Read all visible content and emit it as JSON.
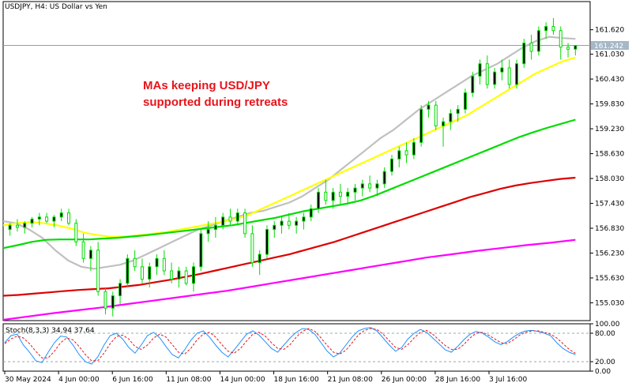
{
  "chart_data": {
    "type": "line",
    "header": {
      "symbol": "USDJPY",
      "timeframe": "H4",
      "description": "US Dollar vs Yen"
    },
    "annotation": "MAs keeping USD/JPY supported during retreats",
    "annotation_lines": [
      "MAs keeping USD/JPY",
      "supported during retreats"
    ],
    "y_ticks": [
      "161.620",
      "161.030",
      "160.430",
      "159.830",
      "159.230",
      "158.630",
      "158.030",
      "157.430",
      "156.830",
      "156.230",
      "155.630",
      "155.030"
    ],
    "y_tick_values": [
      161.62,
      161.03,
      160.43,
      159.83,
      159.23,
      158.63,
      158.03,
      157.43,
      156.83,
      156.23,
      155.63,
      155.03
    ],
    "ylim": [
      154.6,
      162.3
    ],
    "current_price": "161.242",
    "current_price_value": 161.242,
    "x_ticks": [
      "30 May 2024",
      "4 Jun 00:00",
      "6 Jun 16:00",
      "11 Jun 08:00",
      "14 Jun 00:00",
      "18 Jun 16:00",
      "21 Jun 08:00",
      "26 Jun 00:00",
      "28 Jun 16:00",
      "3 Jul 16:00"
    ],
    "candles": [
      [
        156.8,
        156.95,
        156.65,
        156.9
      ],
      [
        156.9,
        157.05,
        156.75,
        156.85
      ],
      [
        156.85,
        157.0,
        156.7,
        156.95
      ],
      [
        156.95,
        157.1,
        156.85,
        157.05
      ],
      [
        157.05,
        157.2,
        156.9,
        157.1
      ],
      [
        157.1,
        157.2,
        156.95,
        157.0
      ],
      [
        157.0,
        157.15,
        156.85,
        157.1
      ],
      [
        157.1,
        157.3,
        157.0,
        157.2
      ],
      [
        157.2,
        157.3,
        156.9,
        156.95
      ],
      [
        156.95,
        157.05,
        156.4,
        156.5
      ],
      [
        156.5,
        156.7,
        156.0,
        156.1
      ],
      [
        156.1,
        156.4,
        155.8,
        156.3
      ],
      [
        156.3,
        156.5,
        155.2,
        155.3
      ],
      [
        155.3,
        155.4,
        154.75,
        154.9
      ],
      [
        154.9,
        155.3,
        154.7,
        155.2
      ],
      [
        155.2,
        155.6,
        155.0,
        155.5
      ],
      [
        155.5,
        156.2,
        155.4,
        156.1
      ],
      [
        156.1,
        156.3,
        155.8,
        155.9
      ],
      [
        155.9,
        156.1,
        155.5,
        155.6
      ],
      [
        155.6,
        156.0,
        155.4,
        155.9
      ],
      [
        155.9,
        156.2,
        155.7,
        156.1
      ],
      [
        156.1,
        156.3,
        155.7,
        155.8
      ],
      [
        155.8,
        156.0,
        155.5,
        155.6
      ],
      [
        155.6,
        155.9,
        155.4,
        155.8
      ],
      [
        155.8,
        155.9,
        155.45,
        155.5
      ],
      [
        155.5,
        156.0,
        155.3,
        155.9
      ],
      [
        155.9,
        156.8,
        155.8,
        156.7
      ],
      [
        156.7,
        157.0,
        156.5,
        156.8
      ],
      [
        156.8,
        157.1,
        156.6,
        156.9
      ],
      [
        156.9,
        157.2,
        156.8,
        157.1
      ],
      [
        157.1,
        157.3,
        156.9,
        157.0
      ],
      [
        157.0,
        157.3,
        156.9,
        157.2
      ],
      [
        157.2,
        157.3,
        156.6,
        156.7
      ],
      [
        156.7,
        156.9,
        155.9,
        156.0
      ],
      [
        156.0,
        156.3,
        155.7,
        156.2
      ],
      [
        156.2,
        156.9,
        156.1,
        156.8
      ],
      [
        156.8,
        157.0,
        156.6,
        156.9
      ],
      [
        156.9,
        157.1,
        156.7,
        157.0
      ],
      [
        157.0,
        157.2,
        156.8,
        156.9
      ],
      [
        156.9,
        157.1,
        156.7,
        157.0
      ],
      [
        157.0,
        157.2,
        156.8,
        157.1
      ],
      [
        157.1,
        157.4,
        157.0,
        157.3
      ],
      [
        157.3,
        157.8,
        157.2,
        157.7
      ],
      [
        157.7,
        158.0,
        157.4,
        157.5
      ],
      [
        157.5,
        157.8,
        157.3,
        157.7
      ],
      [
        157.7,
        157.9,
        157.4,
        157.6
      ],
      [
        157.6,
        157.8,
        157.4,
        157.7
      ],
      [
        157.7,
        157.9,
        157.5,
        157.8
      ],
      [
        157.8,
        158.0,
        157.6,
        157.9
      ],
      [
        157.9,
        158.1,
        157.7,
        157.8
      ],
      [
        157.8,
        158.0,
        157.6,
        157.9
      ],
      [
        157.9,
        158.3,
        157.8,
        158.2
      ],
      [
        158.2,
        158.6,
        158.1,
        158.5
      ],
      [
        158.5,
        158.8,
        158.3,
        158.7
      ],
      [
        158.7,
        158.9,
        158.4,
        158.6
      ],
      [
        158.6,
        159.0,
        158.5,
        158.9
      ],
      [
        158.9,
        159.8,
        158.8,
        159.7
      ],
      [
        159.7,
        159.9,
        159.5,
        159.8
      ],
      [
        159.8,
        159.9,
        159.2,
        159.3
      ],
      [
        159.3,
        159.5,
        158.8,
        159.4
      ],
      [
        159.4,
        159.7,
        159.2,
        159.6
      ],
      [
        159.6,
        159.8,
        159.4,
        159.7
      ],
      [
        159.7,
        160.2,
        159.6,
        160.1
      ],
      [
        160.1,
        160.6,
        160.0,
        160.5
      ],
      [
        160.5,
        160.9,
        160.3,
        160.8
      ],
      [
        160.8,
        161.0,
        160.2,
        160.3
      ],
      [
        160.3,
        160.7,
        160.2,
        160.6
      ],
      [
        160.6,
        160.9,
        160.4,
        160.7
      ],
      [
        160.7,
        160.9,
        160.2,
        160.3
      ],
      [
        160.3,
        160.9,
        160.2,
        160.8
      ],
      [
        160.8,
        161.4,
        160.7,
        161.3
      ],
      [
        161.3,
        161.5,
        160.9,
        161.1
      ],
      [
        161.1,
        161.7,
        161.0,
        161.6
      ],
      [
        161.6,
        161.8,
        161.4,
        161.7
      ],
      [
        161.7,
        161.9,
        161.5,
        161.6
      ],
      [
        161.6,
        161.7,
        160.9,
        161.2
      ],
      [
        161.2,
        161.3,
        160.95,
        161.15
      ],
      [
        161.15,
        161.25,
        161.0,
        161.24
      ]
    ],
    "ma_lines": [
      {
        "color": "#c0c0c0",
        "values": [
          157.0,
          156.95,
          156.8,
          156.6,
          156.3,
          156.05,
          155.9,
          155.85,
          155.9,
          155.95,
          156.05,
          156.2,
          156.35,
          156.5,
          156.65,
          156.8,
          156.9,
          157.0,
          157.1,
          157.2,
          157.25,
          157.35,
          157.45,
          157.6,
          157.8,
          158.0,
          158.25,
          158.5,
          158.75,
          159.0,
          159.2,
          159.45,
          159.7,
          159.9,
          160.1,
          160.3,
          160.5,
          160.65,
          160.8,
          161.0,
          161.2,
          161.35,
          161.45,
          161.42,
          161.4
        ]
      },
      {
        "color": "#ffff00",
        "values": [
          156.9,
          156.95,
          156.98,
          156.95,
          156.9,
          156.82,
          156.72,
          156.66,
          156.62,
          156.63,
          156.66,
          156.7,
          156.74,
          156.8,
          156.86,
          156.92,
          156.98,
          157.05,
          157.15,
          157.3,
          157.45,
          157.6,
          157.75,
          157.9,
          158.05,
          158.2,
          158.35,
          158.5,
          158.65,
          158.8,
          158.95,
          159.1,
          159.25,
          159.4,
          159.55,
          159.75,
          159.95,
          160.15,
          160.35,
          160.55,
          160.7,
          160.85,
          160.95
        ]
      },
      {
        "color": "#00dc00",
        "values": [
          156.35,
          156.42,
          156.5,
          156.55,
          156.56,
          156.56,
          156.56,
          156.58,
          156.6,
          156.63,
          156.66,
          156.7,
          156.74,
          156.78,
          156.82,
          156.86,
          156.9,
          156.96,
          157.02,
          157.08,
          157.16,
          157.24,
          157.3,
          157.36,
          157.42,
          157.5,
          157.62,
          157.76,
          157.9,
          158.04,
          158.18,
          158.32,
          158.46,
          158.6,
          158.74,
          158.88,
          159.02,
          159.14,
          159.25,
          159.35,
          159.45
        ]
      },
      {
        "color": "#dd0000",
        "values": [
          155.2,
          155.22,
          155.25,
          155.28,
          155.31,
          155.34,
          155.36,
          155.38,
          155.42,
          155.46,
          155.52,
          155.58,
          155.65,
          155.72,
          155.8,
          155.88,
          155.96,
          156.04,
          156.12,
          156.2,
          156.3,
          156.4,
          156.5,
          156.62,
          156.74,
          156.86,
          156.98,
          157.1,
          157.22,
          157.34,
          157.46,
          157.58,
          157.68,
          157.78,
          157.86,
          157.92,
          157.97,
          158.02,
          158.05
        ]
      },
      {
        "color": "#ff00ff",
        "values": [
          154.62,
          154.7,
          154.78,
          154.85,
          154.92,
          155.0,
          155.08,
          155.16,
          155.24,
          155.32,
          155.42,
          155.52,
          155.62,
          155.72,
          155.82,
          155.92,
          156.02,
          156.12,
          156.2,
          156.28,
          156.35,
          156.42,
          156.48,
          156.55
        ]
      }
    ],
    "stochastic": {
      "label": "Stoch(8,3,3) 34.94 37.64",
      "k_value": 34.94,
      "d_value": 37.64,
      "levels": [
        "100.00",
        "80.00",
        "20.00",
        "0.00"
      ],
      "level_values": [
        100,
        80,
        20,
        0
      ],
      "ylim": [
        0,
        100
      ],
      "k": [
        60,
        75,
        78,
        55,
        40,
        22,
        18,
        40,
        60,
        74,
        72,
        55,
        35,
        20,
        15,
        30,
        55,
        75,
        80,
        68,
        50,
        38,
        55,
        75,
        82,
        70,
        52,
        35,
        28,
        45,
        65,
        80,
        85,
        72,
        55,
        40,
        30,
        45,
        62,
        78,
        85,
        76,
        62,
        48,
        40,
        55,
        70,
        82,
        90,
        88,
        78,
        60,
        42,
        30,
        38,
        55,
        72,
        85,
        90,
        92,
        85,
        70,
        55,
        42,
        50,
        68,
        80,
        88,
        82,
        70,
        58,
        45,
        40,
        52,
        66,
        78,
        84,
        80,
        72,
        62,
        56,
        62,
        72,
        80,
        85,
        86,
        84,
        80,
        75,
        60,
        48,
        40,
        34.94
      ],
      "d": [
        58,
        68,
        74,
        70,
        58,
        42,
        28,
        28,
        42,
        60,
        70,
        66,
        52,
        35,
        22,
        22,
        38,
        58,
        73,
        76,
        68,
        52,
        46,
        55,
        70,
        78,
        72,
        56,
        40,
        36,
        48,
        66,
        78,
        82,
        72,
        56,
        42,
        38,
        48,
        64,
        78,
        82,
        74,
        60,
        48,
        46,
        56,
        72,
        84,
        90,
        84,
        70,
        54,
        40,
        36,
        44,
        60,
        76,
        86,
        90,
        88,
        78,
        64,
        50,
        46,
        56,
        70,
        82,
        86,
        78,
        66,
        54,
        46,
        46,
        56,
        70,
        80,
        82,
        76,
        68,
        60,
        58,
        66,
        76,
        82,
        85,
        85,
        82,
        78,
        70,
        58,
        46,
        37.64
      ],
      "colors": {
        "k": "#1e90ff",
        "d": "#e8141b"
      }
    },
    "colors": {
      "bull": "#00dc00",
      "bear": "#00dc00",
      "price_line": "#8aa0b4",
      "current_price_box": "#a6b7c6",
      "grid": "none"
    },
    "grid": false
  }
}
